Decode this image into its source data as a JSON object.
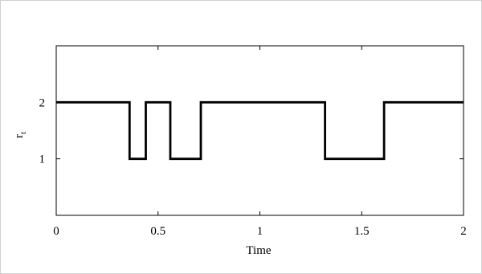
{
  "chart_data": {
    "type": "line",
    "step": true,
    "title": "",
    "xlabel": "Time",
    "ylabel_main": "r",
    "ylabel_sub": "t",
    "xlim": [
      0,
      2
    ],
    "ylim": [
      0,
      3
    ],
    "xticks": [
      0,
      0.5,
      1,
      1.5,
      2
    ],
    "xtick_labels": [
      "0",
      "0.5",
      "1",
      "1.5",
      "2"
    ],
    "yticks": [
      1,
      2
    ],
    "ytick_labels": [
      "1",
      "2"
    ],
    "grid": false,
    "series": [
      {
        "color": "#000000",
        "x": [
          0,
          0.36,
          0.36,
          0.44,
          0.44,
          0.56,
          0.56,
          0.71,
          0.71,
          1.32,
          1.32,
          1.61,
          1.61,
          2.0
        ],
        "y": [
          2,
          2,
          1,
          1,
          2,
          2,
          1,
          1,
          2,
          2,
          1,
          1,
          2,
          2
        ]
      }
    ]
  }
}
